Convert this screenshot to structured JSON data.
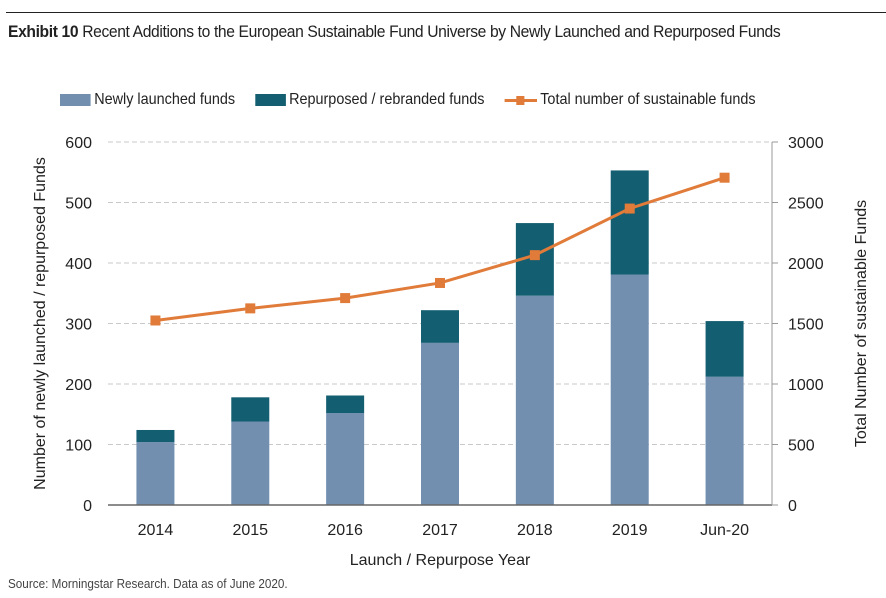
{
  "header": {
    "exhibit_label": "Exhibit 10",
    "title": "Recent Additions to the European Sustainable Fund Universe by Newly Launched and Repurposed Funds"
  },
  "legend": {
    "items": [
      {
        "label": "Newly launched funds",
        "color": "#728FB0",
        "kind": "bar"
      },
      {
        "label": "Repurposed / rebranded funds",
        "color": "#135E70",
        "kind": "bar"
      },
      {
        "label": "Total number of sustainable funds",
        "color": "#E07B39",
        "kind": "line"
      }
    ]
  },
  "footer": {
    "source": "Source: Morningstar Research. Data as of June 2020."
  },
  "chart_data": {
    "type": "bar",
    "stacked": true,
    "title": "Recent Additions to the European Sustainable Fund Universe by Newly Launched and Repurposed Funds",
    "xlabel": "Launch / Repurpose Year",
    "ylabel": "Number of newly launched / repurposed Funds",
    "y2label": "Total Number of sustainable Funds",
    "categories": [
      "2014",
      "2015",
      "2016",
      "2017",
      "2018",
      "2019",
      "Jun-20"
    ],
    "ylim": [
      0,
      600
    ],
    "yticks": [
      0,
      100,
      200,
      300,
      400,
      500,
      600
    ],
    "y2lim": [
      0,
      3000
    ],
    "y2ticks": [
      0,
      500,
      1000,
      1500,
      2000,
      2500,
      3000
    ],
    "grid": true,
    "legend_position": "top",
    "series": [
      {
        "name": "Newly launched funds",
        "type": "bar",
        "axis": "left",
        "color": "#728FB0",
        "values": [
          104,
          138,
          152,
          268,
          346,
          381,
          212
        ]
      },
      {
        "name": "Repurposed / rebranded funds",
        "type": "bar",
        "axis": "left",
        "color": "#135E70",
        "values": [
          20,
          40,
          29,
          54,
          120,
          172,
          92
        ]
      },
      {
        "name": "Total number of sustainable funds",
        "type": "line",
        "axis": "right",
        "color": "#E07B39",
        "values": [
          1525,
          1625,
          1710,
          1835,
          2065,
          2450,
          2705
        ]
      }
    ]
  }
}
